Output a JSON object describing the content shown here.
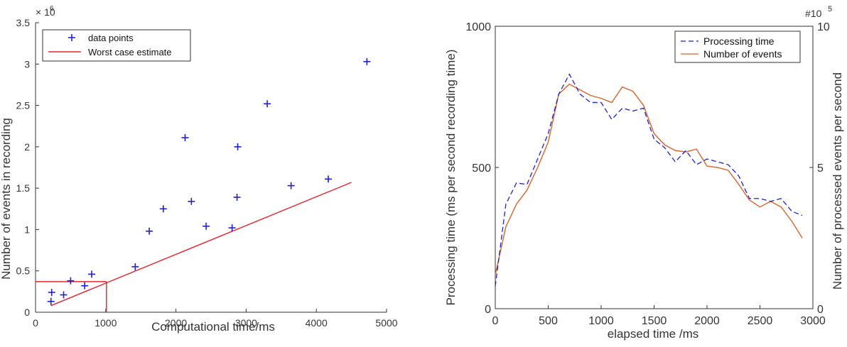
{
  "chart_data": [
    {
      "type": "scatter",
      "xlabel": "Computational time/ms",
      "ylabel": "Number of events in recording",
      "y_exponent_label": "× 10",
      "y_exponent": "6",
      "xlim": [
        0,
        5000
      ],
      "ylim": [
        0,
        3500000
      ],
      "x_ticks": [
        "0",
        "1000",
        "2000",
        "3000",
        "4000",
        "5000"
      ],
      "y_ticks": [
        "0",
        "0.5",
        "1",
        "1.5",
        "2",
        "2.5",
        "3",
        "3.5"
      ],
      "x_tick_values": [
        0,
        1000,
        2000,
        3000,
        4000,
        5000
      ],
      "y_tick_values": [
        0,
        500000,
        1000000,
        1500000,
        2000000,
        2500000,
        3000000,
        3500000
      ],
      "legend_position": "top-left",
      "grid": false,
      "colors": {
        "points": "#1f1fd6",
        "estimate": "#e8242a"
      },
      "series": [
        {
          "name": "data points",
          "marker": "+",
          "points": [
            [
              220,
              130000
            ],
            [
              230,
              240000
            ],
            [
              400,
              210000
            ],
            [
              500,
              380000
            ],
            [
              700,
              320000
            ],
            [
              800,
              460000
            ],
            [
              1420,
              550000
            ],
            [
              1620,
              980000
            ],
            [
              1820,
              1250000
            ],
            [
              2130,
              2110000
            ],
            [
              2220,
              1340000
            ],
            [
              2430,
              1040000
            ],
            [
              2800,
              1020000
            ],
            [
              2870,
              1390000
            ],
            [
              2880,
              2000000
            ],
            [
              3300,
              2520000
            ],
            [
              3640,
              1530000
            ],
            [
              4170,
              1610000
            ],
            [
              4720,
              3030000
            ]
          ]
        },
        {
          "name": "Worst case estimate",
          "marker": "line",
          "points": [
            [
              220,
              80000
            ],
            [
              4500,
              1570000
            ]
          ],
          "guides": [
            [
              [
                0,
                370000
              ],
              [
                1010,
                370000
              ]
            ],
            [
              [
                1010,
                0
              ],
              [
                1010,
                370000
              ]
            ]
          ]
        }
      ]
    },
    {
      "type": "line",
      "xlabel": "elapsed time /ms",
      "ylabel": "Processing time  (ms per second recording time)",
      "y2label": "Number of processed events per second",
      "y2_exponent_label": "#10",
      "y2_exponent": "5",
      "xlim": [
        0,
        3000
      ],
      "ylim": [
        0,
        1000
      ],
      "y2lim": [
        0,
        10
      ],
      "x_ticks": [
        "0",
        "500",
        "1000",
        "1500",
        "2000",
        "2500",
        "3000"
      ],
      "y_ticks": [
        "0",
        "500",
        "1000"
      ],
      "y2_ticks": [
        "0",
        "5",
        "10"
      ],
      "x_tick_values": [
        0,
        500,
        1000,
        1500,
        2000,
        2500,
        3000
      ],
      "y_tick_values": [
        0,
        500,
        1000
      ],
      "y2_tick_values": [
        0,
        5,
        10
      ],
      "legend_position": "top-right",
      "grid": false,
      "colors": {
        "processing": "#1f1fd6",
        "events": "#d9622b"
      },
      "series": [
        {
          "name": "Processing time",
          "axis": "left",
          "style": "dashed",
          "x": [
            0,
            100,
            200,
            300,
            400,
            500,
            600,
            700,
            800,
            900,
            1000,
            1100,
            1200,
            1300,
            1400,
            1500,
            1600,
            1700,
            1800,
            1900,
            2000,
            2100,
            2200,
            2300,
            2400,
            2500,
            2600,
            2700,
            2800,
            2900
          ],
          "values": [
            80,
            370,
            445,
            440,
            530,
            620,
            760,
            830,
            760,
            730,
            730,
            670,
            710,
            700,
            710,
            600,
            570,
            520,
            560,
            510,
            530,
            520,
            510,
            470,
            390,
            390,
            380,
            390,
            345,
            330
          ]
        },
        {
          "name": "Number of events",
          "axis": "right",
          "style": "solid",
          "x": [
            0,
            100,
            200,
            300,
            400,
            500,
            600,
            700,
            800,
            900,
            1000,
            1100,
            1200,
            1300,
            1400,
            1500,
            1600,
            1700,
            1800,
            1900,
            2000,
            2100,
            2200,
            2300,
            2400,
            2500,
            2600,
            2700,
            2800,
            2900
          ],
          "values": [
            1.2,
            2.9,
            3.7,
            4.2,
            5.0,
            5.9,
            7.6,
            7.95,
            7.75,
            7.55,
            7.45,
            7.3,
            7.85,
            7.7,
            7.2,
            6.2,
            5.8,
            5.6,
            5.55,
            5.65,
            5.05,
            5.0,
            4.9,
            4.4,
            3.85,
            3.6,
            3.8,
            3.6,
            3.1,
            2.5
          ]
        }
      ]
    }
  ]
}
